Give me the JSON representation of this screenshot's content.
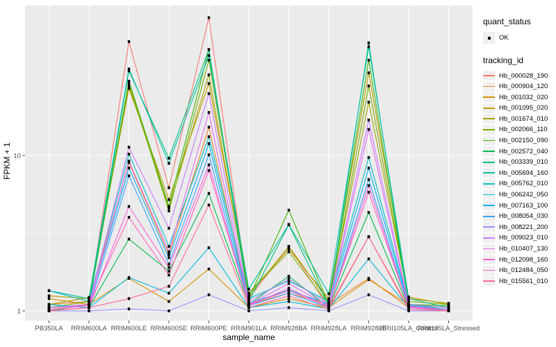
{
  "legend": {
    "quant_status_title": "quant_status",
    "ok_label": "OK",
    "ok_marker": "black-square",
    "tracking_id_title": "tracking_id"
  },
  "chart_data": {
    "type": "line",
    "title": "",
    "xlabel": "sample_name",
    "ylabel": "FPKM + 1",
    "yscale": "log10",
    "ylim": [
      0.87,
      92
    ],
    "yticks": [
      1,
      10
    ],
    "yminor": [
      3.1623,
      31.623
    ],
    "grid": true,
    "legend_position": "right",
    "panel_background": "#ebebeb",
    "gridline_color": "#ffffff",
    "point_color": "#000000",
    "point_shape": "square",
    "categories": [
      "PB350LA",
      "RRIM600LA",
      "RRIM600LE",
      "RRIM600SE",
      "RRIM600PE",
      "RRIM901LA",
      "RRIM928BA",
      "RRIM928LA",
      "RRIM928LE",
      "RRII105LA_Control",
      "RRII105LA_Stressed"
    ],
    "series": [
      {
        "name": "Hb_000028_190",
        "color": "#F8766D",
        "values": [
          1.05,
          1.1,
          54,
          6.2,
          77,
          1.2,
          2.6,
          1.05,
          3.0,
          1.05,
          1.0
        ]
      },
      {
        "name": "Hb_000904_120",
        "color": "#EA8331",
        "values": [
          1.1,
          1.15,
          9.0,
          2.3,
          15.2,
          1.1,
          1.3,
          1.1,
          1.62,
          1.05,
          1.0
        ]
      },
      {
        "name": "Hb_001032_020",
        "color": "#D89000",
        "values": [
          1.2,
          1.1,
          1.62,
          1.15,
          1.86,
          1.05,
          1.2,
          1.05,
          1.59,
          1.1,
          1.05
        ]
      },
      {
        "name": "Hb_001095_020",
        "color": "#C09B00",
        "values": [
          1.25,
          1.2,
          27,
          5.2,
          29,
          1.3,
          2.5,
          1.2,
          34,
          1.23,
          1.1
        ]
      },
      {
        "name": "Hb_001674_010",
        "color": "#A3A500",
        "values": [
          1.1,
          1.22,
          28,
          4.6,
          33,
          1.25,
          2.6,
          1.15,
          22,
          1.2,
          1.12
        ]
      },
      {
        "name": "Hb_002066_110",
        "color": "#7CAE00",
        "values": [
          1.05,
          1.15,
          29,
          4.4,
          41,
          1.3,
          2.4,
          1.1,
          28,
          1.15,
          1.1
        ]
      },
      {
        "name": "Hb_002150_090",
        "color": "#39B600",
        "values": [
          1.0,
          1.1,
          30,
          4.7,
          48,
          1.2,
          4.45,
          1.1,
          41,
          1.1,
          1.08
        ]
      },
      {
        "name": "Hb_002572_040",
        "color": "#00BB4E",
        "values": [
          1.0,
          1.05,
          2.9,
          1.8,
          5.7,
          1.1,
          1.67,
          1.05,
          4.3,
          1.05,
          1.02
        ]
      },
      {
        "name": "Hb_003339_010",
        "color": "#00BF7D",
        "values": [
          1.05,
          1.1,
          35,
          9.6,
          48,
          1.15,
          3.58,
          1.08,
          53,
          1.09,
          1.05
        ]
      },
      {
        "name": "Hb_005694_160",
        "color": "#00C1A3",
        "values": [
          1.35,
          1.2,
          36,
          8.9,
          44,
          1.38,
          3.6,
          1.29,
          50,
          1.2,
          1.05
        ]
      },
      {
        "name": "Hb_005762_010",
        "color": "#00BFC4",
        "values": [
          1.35,
          1.15,
          10.2,
          2.6,
          13.2,
          1.2,
          1.56,
          1.15,
          9.7,
          1.1,
          1.02
        ]
      },
      {
        "name": "Hb_006242_050",
        "color": "#00BAE0",
        "values": [
          1.1,
          1.05,
          1.64,
          1.3,
          2.55,
          1.05,
          1.15,
          1.03,
          2.16,
          1.05,
          1.0
        ]
      },
      {
        "name": "Hb_007163_100",
        "color": "#00B0F6",
        "values": [
          1.05,
          1.1,
          8.3,
          2.2,
          11.9,
          1.12,
          1.36,
          1.1,
          8.3,
          1.08,
          1.02
        ]
      },
      {
        "name": "Hb_008054_030",
        "color": "#35A2FF",
        "values": [
          1.0,
          1.05,
          7.4,
          2.0,
          10.1,
          1.08,
          1.3,
          1.05,
          7.0,
          1.05,
          1.0
        ]
      },
      {
        "name": "Hb_008221_200",
        "color": "#9590FF",
        "values": [
          1.0,
          1.0,
          1.03,
          1.0,
          1.27,
          1.0,
          1.05,
          1.0,
          1.27,
          1.0,
          1.0
        ]
      },
      {
        "name": "Hb_009023_010",
        "color": "#C77CFF",
        "values": [
          1.05,
          1.1,
          11.3,
          3.4,
          25,
          1.15,
          1.6,
          1.1,
          16.9,
          1.1,
          1.05
        ]
      },
      {
        "name": "Hb_010407_130",
        "color": "#E76BF3",
        "values": [
          1.02,
          1.08,
          9.2,
          2.4,
          18.9,
          1.1,
          1.5,
          1.07,
          14.7,
          1.07,
          1.02
        ]
      },
      {
        "name": "Hb_012098_160",
        "color": "#FA62DB",
        "values": [
          1.0,
          1.05,
          4.7,
          1.9,
          8.7,
          1.08,
          1.4,
          1.05,
          6.4,
          1.05,
          1.0
        ]
      },
      {
        "name": "Hb_012484_050",
        "color": "#FF62BC",
        "values": [
          1.02,
          1.1,
          4.0,
          1.7,
          8.0,
          1.1,
          1.35,
          1.06,
          5.8,
          1.06,
          1.0
        ]
      },
      {
        "name": "Hb_015561_010",
        "color": "#FF6A98",
        "values": [
          1.0,
          1.05,
          1.2,
          1.44,
          4.8,
          1.05,
          1.25,
          1.02,
          3.0,
          1.02,
          1.0
        ]
      }
    ]
  }
}
